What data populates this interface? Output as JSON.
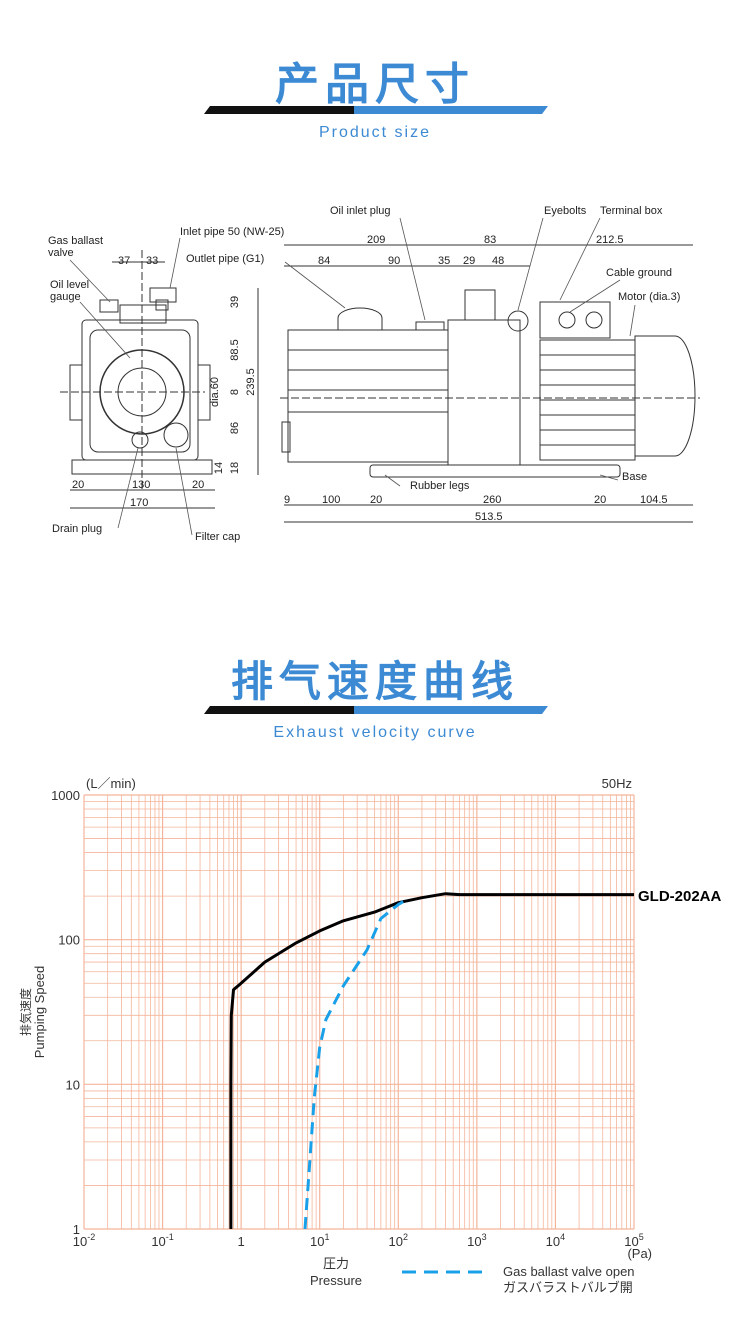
{
  "section1": {
    "title": "产品尺寸",
    "subtitle": "Product size"
  },
  "section2": {
    "title": "排气速度曲线",
    "subtitle": "Exhaust velocity curve"
  },
  "colors": {
    "accent": "#3c8ad3",
    "grid": "#f4b59b",
    "main_curve": "#000000",
    "ballast_curve": "#1aa0e8"
  },
  "drawing": {
    "labels": {
      "gas_ballast": [
        "Gas ballast",
        "valve"
      ],
      "oil_level": [
        "Oil level",
        "gauge"
      ],
      "inlet_pipe": "Inlet pipe 50 (NW-25)",
      "outlet_pipe": "Outlet pipe (G1)",
      "oil_inlet_plug": "Oil inlet plug",
      "eyebolts": "Eyebolts",
      "terminal_box": "Terminal box",
      "cable_ground": "Cable ground",
      "motor": "Motor (dia.3)",
      "base": "Base",
      "rubber_legs": "Rubber legs",
      "drain_plug": "Drain plug",
      "filter_cap": "Filter cap"
    },
    "front_dims": {
      "d37": "37",
      "d33": "33",
      "d39": "39",
      "d88_5": "88.5",
      "dia60": "dia.60",
      "d8": "8",
      "d239_5": "239.5",
      "d86": "86",
      "d14": "14",
      "d18": "18",
      "d20a": "20",
      "d130": "130",
      "d20b": "20",
      "d170": "170"
    },
    "side_dims": {
      "d209": "209",
      "d83": "83",
      "d212_5": "212.5",
      "d84": "84",
      "d90": "90",
      "d35": "35",
      "d29": "29",
      "d48": "48",
      "d9": "9",
      "d100": "100",
      "d20a": "20",
      "d260": "260",
      "d20b": "20",
      "d104_5": "104.5",
      "d513_5": "513.5"
    }
  },
  "chart_data": {
    "type": "line",
    "xscale": "log",
    "yscale": "log",
    "xlim": [
      0.01,
      100000
    ],
    "ylim": [
      1,
      1000
    ],
    "grid": true,
    "x_ticks": [
      {
        "base": "10",
        "exp": "-2"
      },
      {
        "base": "10",
        "exp": "-1"
      },
      {
        "base": "1",
        "exp": ""
      },
      {
        "base": "10",
        "exp": "1"
      },
      {
        "base": "10",
        "exp": "2"
      },
      {
        "base": "10",
        "exp": "3"
      },
      {
        "base": "10",
        "exp": "4"
      },
      {
        "base": "10",
        "exp": "5"
      }
    ],
    "y_ticks": [
      "1",
      "10",
      "100",
      "1000"
    ],
    "x_unit": "(Pa)",
    "y_unit": "(L／min)",
    "xlabel": [
      "圧力",
      "Pressure"
    ],
    "ylabel": [
      "排気速度",
      "Pumping Speed"
    ],
    "frequency": "50Hz",
    "series": [
      {
        "name": "GLD-202AA",
        "style": "solid",
        "color": "#000000",
        "points": [
          [
            0.74,
            1
          ],
          [
            0.74,
            10
          ],
          [
            0.75,
            30
          ],
          [
            0.8,
            45
          ],
          [
            1,
            50
          ],
          [
            2,
            70
          ],
          [
            5,
            95
          ],
          [
            10,
            115
          ],
          [
            20,
            135
          ],
          [
            50,
            155
          ],
          [
            100,
            180
          ],
          [
            200,
            195
          ],
          [
            400,
            208
          ],
          [
            600,
            205
          ],
          [
            100000,
            205
          ]
        ]
      },
      {
        "name": "Gas ballast valve open",
        "name_jp": "ガスバラストバルブ開",
        "style": "dashed",
        "color": "#1aa0e8",
        "points": [
          [
            6.5,
            1
          ],
          [
            7.5,
            3
          ],
          [
            8.5,
            8
          ],
          [
            10,
            18
          ],
          [
            12,
            28
          ],
          [
            20,
            48
          ],
          [
            40,
            85
          ],
          [
            60,
            140
          ],
          [
            100,
            175
          ],
          [
            130,
            190
          ]
        ]
      }
    ]
  }
}
